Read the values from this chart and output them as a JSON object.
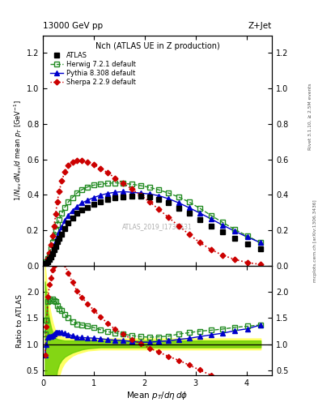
{
  "atlas_x": [
    0.04,
    0.07,
    0.1,
    0.13,
    0.16,
    0.19,
    0.22,
    0.25,
    0.28,
    0.32,
    0.37,
    0.43,
    0.5,
    0.58,
    0.67,
    0.77,
    0.88,
    1.0,
    1.13,
    1.27,
    1.42,
    1.58,
    1.75,
    1.92,
    2.1,
    2.28,
    2.47,
    2.67,
    2.87,
    3.08,
    3.3,
    3.53,
    3.77,
    4.02,
    4.28
  ],
  "atlas_y": [
    0.01,
    0.015,
    0.022,
    0.035,
    0.052,
    0.07,
    0.09,
    0.11,
    0.135,
    0.155,
    0.18,
    0.21,
    0.24,
    0.268,
    0.295,
    0.315,
    0.33,
    0.345,
    0.36,
    0.375,
    0.385,
    0.39,
    0.395,
    0.395,
    0.39,
    0.375,
    0.355,
    0.325,
    0.295,
    0.26,
    0.225,
    0.19,
    0.155,
    0.125,
    0.095
  ],
  "herwig_x": [
    0.04,
    0.07,
    0.1,
    0.13,
    0.16,
    0.19,
    0.22,
    0.25,
    0.28,
    0.32,
    0.37,
    0.43,
    0.5,
    0.58,
    0.67,
    0.77,
    0.88,
    1.0,
    1.13,
    1.27,
    1.42,
    1.58,
    1.75,
    1.92,
    2.1,
    2.28,
    2.47,
    2.67,
    2.87,
    3.08,
    3.3,
    3.53,
    3.77,
    4.02,
    4.28
  ],
  "herwig_y": [
    0.012,
    0.022,
    0.04,
    0.065,
    0.095,
    0.13,
    0.165,
    0.2,
    0.235,
    0.26,
    0.295,
    0.33,
    0.36,
    0.385,
    0.41,
    0.43,
    0.445,
    0.455,
    0.46,
    0.465,
    0.468,
    0.465,
    0.46,
    0.452,
    0.442,
    0.428,
    0.41,
    0.388,
    0.36,
    0.325,
    0.285,
    0.245,
    0.205,
    0.168,
    0.13
  ],
  "pythia_x": [
    0.04,
    0.07,
    0.1,
    0.13,
    0.16,
    0.19,
    0.22,
    0.25,
    0.28,
    0.32,
    0.37,
    0.43,
    0.5,
    0.58,
    0.67,
    0.77,
    0.88,
    1.0,
    1.13,
    1.27,
    1.42,
    1.58,
    1.75,
    1.92,
    2.1,
    2.28,
    2.47,
    2.67,
    2.87,
    3.08,
    3.3,
    3.53,
    3.77,
    4.02,
    4.28
  ],
  "pythia_y": [
    0.008,
    0.015,
    0.025,
    0.04,
    0.06,
    0.082,
    0.108,
    0.135,
    0.165,
    0.19,
    0.22,
    0.255,
    0.285,
    0.312,
    0.335,
    0.355,
    0.37,
    0.385,
    0.398,
    0.408,
    0.415,
    0.418,
    0.415,
    0.41,
    0.405,
    0.395,
    0.378,
    0.355,
    0.328,
    0.298,
    0.265,
    0.23,
    0.195,
    0.162,
    0.13
  ],
  "sherpa_x": [
    0.04,
    0.07,
    0.1,
    0.13,
    0.16,
    0.19,
    0.22,
    0.25,
    0.28,
    0.32,
    0.37,
    0.43,
    0.5,
    0.58,
    0.67,
    0.77,
    0.88,
    1.0,
    1.13,
    1.27,
    1.42,
    1.58,
    1.75,
    1.92,
    2.1,
    2.28,
    2.47,
    2.67,
    2.87,
    3.08,
    3.3,
    3.53,
    3.77,
    4.02,
    4.28
  ],
  "sherpa_y": [
    0.008,
    0.02,
    0.042,
    0.075,
    0.118,
    0.17,
    0.225,
    0.29,
    0.36,
    0.42,
    0.48,
    0.53,
    0.565,
    0.585,
    0.595,
    0.595,
    0.585,
    0.57,
    0.55,
    0.525,
    0.495,
    0.465,
    0.432,
    0.398,
    0.36,
    0.318,
    0.272,
    0.225,
    0.178,
    0.132,
    0.092,
    0.06,
    0.036,
    0.018,
    0.008
  ],
  "atlas_color": "#000000",
  "herwig_color": "#228B22",
  "pythia_color": "#0000CC",
  "sherpa_color": "#CC0000",
  "xlim": [
    0.0,
    4.5
  ],
  "ylim_main": [
    0.0,
    1.3
  ],
  "ylim_ratio": [
    0.4,
    2.5
  ],
  "yticks_main": [
    0.0,
    0.2,
    0.4,
    0.6,
    0.8,
    1.0,
    1.2
  ],
  "yticks_ratio": [
    0.5,
    1.0,
    1.5,
    2.0
  ],
  "xticks": [
    0,
    1,
    2,
    3,
    4
  ],
  "band_x": [
    0.04,
    0.07,
    0.1,
    0.13,
    0.16,
    0.19,
    0.22,
    0.25,
    0.28,
    0.32,
    0.37,
    0.43,
    0.5,
    0.58,
    0.67,
    0.77,
    0.88,
    1.0,
    1.13,
    1.27,
    1.42,
    1.58,
    1.75,
    1.92,
    2.1,
    2.28,
    2.47,
    2.67,
    2.87,
    3.08,
    3.3,
    3.53,
    3.77,
    4.02,
    4.28
  ],
  "yellow_up": [
    2.5,
    2.2,
    1.9,
    1.7,
    1.55,
    1.42,
    1.32,
    1.25,
    1.2,
    1.17,
    1.14,
    1.12,
    1.11,
    1.11,
    1.11,
    1.11,
    1.11,
    1.11,
    1.11,
    1.11,
    1.11,
    1.11,
    1.11,
    1.11,
    1.11,
    1.11,
    1.11,
    1.11,
    1.11,
    1.11,
    1.11,
    1.11,
    1.11,
    1.11,
    1.11
  ],
  "yellow_lo": [
    0.0,
    0.0,
    0.0,
    0.0,
    0.0,
    0.0,
    0.0,
    0.0,
    0.2,
    0.4,
    0.55,
    0.65,
    0.72,
    0.78,
    0.82,
    0.85,
    0.88,
    0.89,
    0.9,
    0.9,
    0.9,
    0.9,
    0.9,
    0.9,
    0.9,
    0.9,
    0.9,
    0.9,
    0.9,
    0.9,
    0.9,
    0.9,
    0.9,
    0.9,
    0.9
  ],
  "green_up": [
    2.2,
    1.9,
    1.6,
    1.45,
    1.32,
    1.22,
    1.15,
    1.12,
    1.1,
    1.09,
    1.08,
    1.07,
    1.07,
    1.07,
    1.07,
    1.07,
    1.07,
    1.07,
    1.07,
    1.07,
    1.07,
    1.07,
    1.07,
    1.07,
    1.07,
    1.07,
    1.07,
    1.07,
    1.07,
    1.07,
    1.07,
    1.07,
    1.07,
    1.07,
    1.07
  ],
  "green_lo": [
    0.0,
    0.0,
    0.0,
    0.0,
    0.0,
    0.0,
    0.1,
    0.3,
    0.5,
    0.62,
    0.7,
    0.76,
    0.8,
    0.84,
    0.87,
    0.9,
    0.92,
    0.93,
    0.94,
    0.94,
    0.94,
    0.94,
    0.94,
    0.94,
    0.94,
    0.94,
    0.94,
    0.94,
    0.94,
    0.94,
    0.94,
    0.94,
    0.94,
    0.94,
    0.94
  ],
  "title_top_left": "13000 GeV pp",
  "title_top_right": "Z+Jet",
  "plot_title": "Nch (ATLAS UE in Z production)",
  "watermark": "ATLAS_2019_I1736531",
  "ylabel_main": "1/N_{ev} dN_{ev}/d mean p_T [GeV^{-1}]",
  "ylabel_ratio": "Ratio to ATLAS",
  "xlabel": "Mean p_T/d\\eta d\\phi",
  "rivet_label": "Rivet 3.1.10, ≥ 2.5M events",
  "mcplots_label": "mcplots.cern.ch [arXiv:1306.3436]"
}
